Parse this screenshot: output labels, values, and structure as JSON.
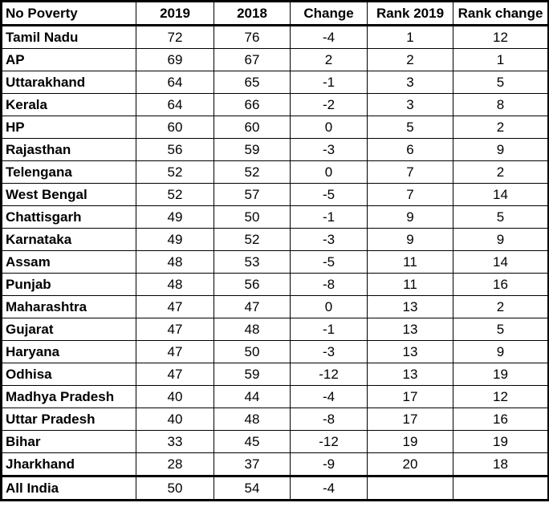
{
  "colors": {
    "border": "#000000",
    "text": "#000000",
    "background": "#ffffff"
  },
  "chart_data": {
    "type": "table",
    "columns": [
      "No Poverty",
      "2019",
      "2018",
      "Change",
      "Rank 2019",
      "Rank change"
    ],
    "rows": [
      [
        "Tamil Nadu",
        72,
        76,
        -4,
        1,
        12
      ],
      [
        "AP",
        69,
        67,
        2,
        2,
        1
      ],
      [
        "Uttarakhand",
        64,
        65,
        -1,
        3,
        5
      ],
      [
        "Kerala",
        64,
        66,
        -2,
        3,
        8
      ],
      [
        "HP",
        60,
        60,
        0,
        5,
        2
      ],
      [
        "Rajasthan",
        56,
        59,
        -3,
        6,
        9
      ],
      [
        "Telengana",
        52,
        52,
        0,
        7,
        2
      ],
      [
        "West Bengal",
        52,
        57,
        -5,
        7,
        14
      ],
      [
        "Chattisgarh",
        49,
        50,
        -1,
        9,
        5
      ],
      [
        "Karnataka",
        49,
        52,
        -3,
        9,
        9
      ],
      [
        "Assam",
        48,
        53,
        -5,
        11,
        14
      ],
      [
        "Punjab",
        48,
        56,
        -8,
        11,
        16
      ],
      [
        "Maharashtra",
        47,
        47,
        0,
        13,
        2
      ],
      [
        "Gujarat",
        47,
        48,
        -1,
        13,
        5
      ],
      [
        "Haryana",
        47,
        50,
        -3,
        13,
        9
      ],
      [
        "Odhisa",
        47,
        59,
        -12,
        13,
        19
      ],
      [
        "Madhya Pradesh",
        40,
        44,
        -4,
        17,
        12
      ],
      [
        "Uttar Pradesh",
        40,
        48,
        -8,
        17,
        16
      ],
      [
        "Bihar",
        33,
        45,
        -12,
        19,
        19
      ],
      [
        "Jharkhand",
        28,
        37,
        -9,
        20,
        18
      ],
      [
        "All India",
        50,
        54,
        -4,
        "",
        ""
      ]
    ],
    "total_row_label": "All India",
    "title": "",
    "legend": [],
    "grid": "on"
  }
}
